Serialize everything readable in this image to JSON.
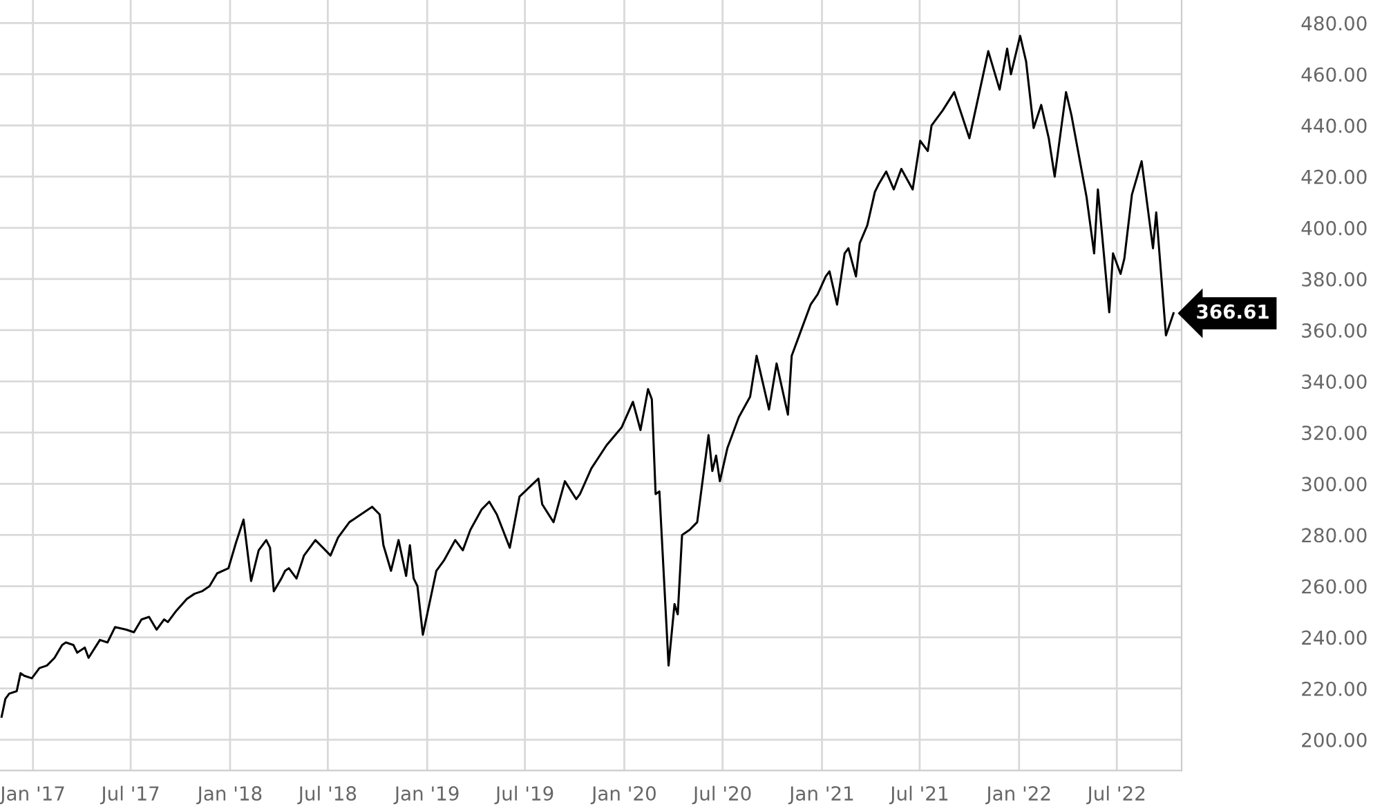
{
  "chart_data": {
    "type": "line",
    "x": [
      "2016-11-04",
      "2016-11-11",
      "2016-11-18",
      "2016-12-02",
      "2016-12-09",
      "2016-12-16",
      "2016-12-30",
      "2017-01-13",
      "2017-01-27",
      "2017-02-10",
      "2017-02-24",
      "2017-03-03",
      "2017-03-17",
      "2017-03-24",
      "2017-04-07",
      "2017-04-14",
      "2017-05-05",
      "2017-05-19",
      "2017-06-02",
      "2017-06-23",
      "2017-07-07",
      "2017-07-21",
      "2017-08-04",
      "2017-08-18",
      "2017-09-01",
      "2017-09-08",
      "2017-09-22",
      "2017-10-13",
      "2017-10-27",
      "2017-11-10",
      "2017-11-24",
      "2017-12-08",
      "2017-12-29",
      "2018-01-12",
      "2018-01-26",
      "2018-02-09",
      "2018-02-23",
      "2018-03-09",
      "2018-03-16",
      "2018-03-23",
      "2018-04-06",
      "2018-04-13",
      "2018-04-20",
      "2018-05-04",
      "2018-05-18",
      "2018-06-08",
      "2018-06-22",
      "2018-07-06",
      "2018-07-20",
      "2018-08-10",
      "2018-08-24",
      "2018-09-21",
      "2018-10-05",
      "2018-10-12",
      "2018-10-26",
      "2018-11-09",
      "2018-11-23",
      "2018-11-30",
      "2018-12-07",
      "2018-12-14",
      "2018-12-24",
      "2019-01-18",
      "2019-02-01",
      "2019-02-22",
      "2019-03-08",
      "2019-03-22",
      "2019-04-12",
      "2019-04-26",
      "2019-05-10",
      "2019-06-03",
      "2019-06-21",
      "2019-07-26",
      "2019-08-02",
      "2019-08-23",
      "2019-09-13",
      "2019-10-04",
      "2019-10-11",
      "2019-11-01",
      "2019-11-29",
      "2019-12-27",
      "2020-01-17",
      "2020-01-31",
      "2020-02-14",
      "2020-02-21",
      "2020-02-28",
      "2020-03-06",
      "2020-03-23",
      "2020-04-03",
      "2020-04-09",
      "2020-04-17",
      "2020-05-01",
      "2020-05-15",
      "2020-06-05",
      "2020-06-12",
      "2020-06-19",
      "2020-06-26",
      "2020-07-10",
      "2020-07-31",
      "2020-08-21",
      "2020-09-02",
      "2020-09-25",
      "2020-10-09",
      "2020-10-30",
      "2020-11-06",
      "2020-11-20",
      "2020-12-11",
      "2020-12-24",
      "2021-01-08",
      "2021-01-15",
      "2021-01-29",
      "2021-02-12",
      "2021-02-19",
      "2021-03-05",
      "2021-03-12",
      "2021-03-26",
      "2021-04-09",
      "2021-04-16",
      "2021-04-30",
      "2021-05-14",
      "2021-05-28",
      "2021-06-18",
      "2021-07-02",
      "2021-07-16",
      "2021-07-23",
      "2021-08-13",
      "2021-09-03",
      "2021-09-17",
      "2021-10-01",
      "2021-11-05",
      "2021-11-26",
      "2021-12-10",
      "2021-12-17",
      "2022-01-03",
      "2022-01-14",
      "2022-01-28",
      "2022-02-11",
      "2022-02-25",
      "2022-03-08",
      "2022-03-29",
      "2022-04-08",
      "2022-05-06",
      "2022-05-20",
      "2022-05-27",
      "2022-06-17",
      "2022-06-24",
      "2022-07-08",
      "2022-07-15",
      "2022-07-29",
      "2022-08-16",
      "2022-09-06",
      "2022-09-12",
      "2022-09-30",
      "2022-10-14"
    ],
    "series": [
      {
        "color": "#000000",
        "values": [
          209,
          216,
          218,
          219,
          226,
          225,
          224,
          228,
          229,
          232,
          237,
          238,
          237,
          234,
          236,
          232,
          239,
          238,
          244,
          243,
          242,
          247,
          248,
          243,
          247,
          246,
          250,
          255,
          257,
          258,
          260,
          265,
          267,
          277,
          286,
          262,
          274,
          278,
          275,
          258,
          263,
          266,
          267,
          263,
          272,
          278,
          275,
          272,
          279,
          285,
          287,
          291,
          288,
          276,
          266,
          278,
          264,
          276,
          263,
          260,
          241,
          266,
          270,
          278,
          274,
          282,
          290,
          293,
          288,
          275,
          295,
          302,
          292,
          285,
          301,
          294,
          296,
          306,
          315,
          322,
          332,
          321,
          337,
          333,
          296,
          297,
          229,
          253,
          249,
          280,
          282,
          285,
          319,
          305,
          311,
          301,
          314,
          326,
          334,
          350,
          329,
          347,
          327,
          350,
          358,
          370,
          374,
          381,
          383,
          370,
          390,
          392,
          381,
          394,
          401,
          414,
          417,
          422,
          415,
          423,
          415,
          434,
          430,
          440,
          446,
          453,
          444,
          435,
          469,
          454,
          470,
          460,
          475,
          465,
          439,
          448,
          435,
          420,
          453,
          444,
          412,
          390,
          415,
          367,
          390,
          382,
          388,
          413,
          426,
          392,
          406,
          358,
          366.61
        ]
      }
    ],
    "xlim": [
      "2016-11-01",
      "2022-10-29"
    ],
    "xticks": [
      {
        "value": "2017-01-01",
        "label": "Jan '17"
      },
      {
        "value": "2017-07-01",
        "label": "Jul '17"
      },
      {
        "value": "2018-01-01",
        "label": "Jan '18"
      },
      {
        "value": "2018-07-01",
        "label": "Jul '18"
      },
      {
        "value": "2019-01-01",
        "label": "Jan '19"
      },
      {
        "value": "2019-07-01",
        "label": "Jul '19"
      },
      {
        "value": "2020-01-01",
        "label": "Jan '20"
      },
      {
        "value": "2020-07-01",
        "label": "Jul '20"
      },
      {
        "value": "2021-01-01",
        "label": "Jan '21"
      },
      {
        "value": "2021-07-01",
        "label": "Jul '21"
      },
      {
        "value": "2022-01-01",
        "label": "Jan '22"
      },
      {
        "value": "2022-07-01",
        "label": "Jul '22"
      }
    ],
    "ylim": [
      188,
      489
    ],
    "yticks": [
      {
        "value": 200,
        "label": "200.00"
      },
      {
        "value": 220,
        "label": "220.00"
      },
      {
        "value": 240,
        "label": "240.00"
      },
      {
        "value": 260,
        "label": "260.00"
      },
      {
        "value": 280,
        "label": "280.00"
      },
      {
        "value": 300,
        "label": "300.00"
      },
      {
        "value": 320,
        "label": "320.00"
      },
      {
        "value": 340,
        "label": "340.00"
      },
      {
        "value": 360,
        "label": "360.00"
      },
      {
        "value": 380,
        "label": "380.00"
      },
      {
        "value": 400,
        "label": "400.00"
      },
      {
        "value": 420,
        "label": "420.00"
      },
      {
        "value": 440,
        "label": "440.00"
      },
      {
        "value": 460,
        "label": "460.00"
      },
      {
        "value": 480,
        "label": "480.00"
      }
    ],
    "grid": true,
    "annotations": [
      {
        "text": "366.61",
        "x": "2022-10-14",
        "y": 366.61
      }
    ]
  }
}
